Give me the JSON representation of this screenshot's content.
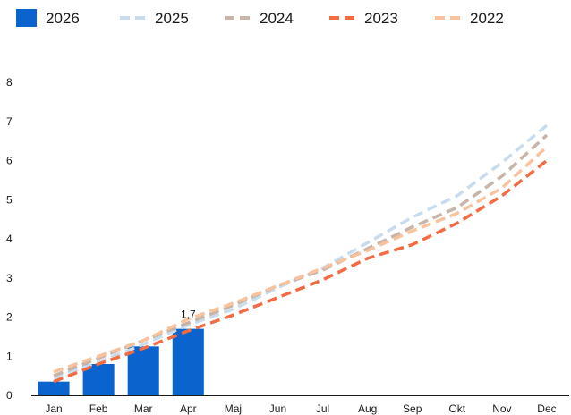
{
  "chart_data": {
    "type": "bar",
    "categories": [
      "Jan",
      "Feb",
      "Mar",
      "Apr",
      "Maj",
      "Jun",
      "Jul",
      "Aug",
      "Sep",
      "Okt",
      "Nov",
      "Dec"
    ],
    "ylim": [
      0,
      8
    ],
    "yticks": [
      "0",
      "1",
      "2",
      "3",
      "4",
      "5",
      "6",
      "7",
      "8"
    ],
    "grid": false,
    "legend_position": "top-left",
    "bar_series": {
      "name": "2026",
      "color": "#0b63ce",
      "values": [
        0.35,
        0.8,
        1.25,
        1.7
      ],
      "labels": [
        "",
        "",
        "",
        "1,7"
      ]
    },
    "line_series": [
      {
        "name": "2025",
        "color": "#c9dcee",
        "style": "dashed",
        "values": [
          0.45,
          0.85,
          1.3,
          1.8,
          2.2,
          2.75,
          3.25,
          3.9,
          4.55,
          5.1,
          5.95,
          6.9
        ]
      },
      {
        "name": "2024",
        "color": "#c8b4a8",
        "style": "dashed",
        "values": [
          0.5,
          0.95,
          1.4,
          1.85,
          2.3,
          2.8,
          3.2,
          3.75,
          4.3,
          4.8,
          5.6,
          6.65
        ]
      },
      {
        "name": "2023",
        "color": "#f26b43",
        "style": "dashed",
        "values": [
          0.35,
          0.8,
          1.2,
          1.65,
          2.05,
          2.5,
          2.95,
          3.5,
          3.85,
          4.4,
          5.1,
          6.0
        ]
      },
      {
        "name": "2022",
        "color": "#f8c29c",
        "style": "dashed",
        "values": [
          0.6,
          1.0,
          1.4,
          1.95,
          2.35,
          2.8,
          3.25,
          3.7,
          4.2,
          4.65,
          5.3,
          6.35
        ]
      }
    ]
  }
}
